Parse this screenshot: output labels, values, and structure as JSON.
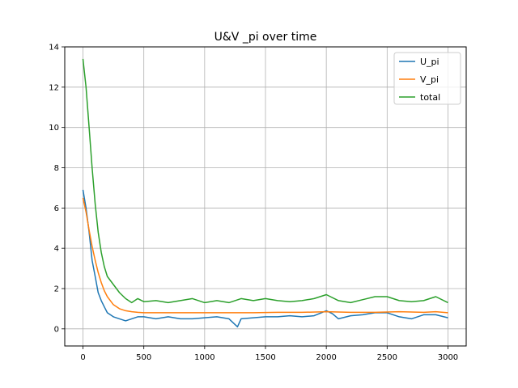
{
  "chart_data": {
    "type": "line",
    "title": "U&V _pi over time",
    "xlabel": "",
    "ylabel": "",
    "xlim": [
      -150,
      3150
    ],
    "ylim": [
      -0.85,
      14.0
    ],
    "xticks": [
      0,
      500,
      1000,
      1500,
      2000,
      2500,
      3000
    ],
    "yticks": [
      0,
      2,
      4,
      6,
      8,
      10,
      12,
      14
    ],
    "grid": true,
    "legend_position": "top-right",
    "series": [
      {
        "name": "U_pi",
        "color": "#1f77b4",
        "x": [
          0,
          25,
          50,
          75,
          100,
          125,
          150,
          175,
          200,
          250,
          300,
          350,
          400,
          450,
          500,
          600,
          700,
          800,
          900,
          1000,
          1100,
          1200,
          1270,
          1300,
          1400,
          1500,
          1600,
          1700,
          1800,
          1900,
          2000,
          2050,
          2100,
          2200,
          2300,
          2400,
          2500,
          2600,
          2700,
          2800,
          2900,
          3000
        ],
        "y": [
          6.9,
          6.0,
          4.8,
          3.4,
          2.6,
          1.8,
          1.4,
          1.1,
          0.8,
          0.6,
          0.5,
          0.4,
          0.5,
          0.6,
          0.6,
          0.5,
          0.6,
          0.5,
          0.5,
          0.55,
          0.6,
          0.5,
          0.1,
          0.5,
          0.55,
          0.6,
          0.6,
          0.65,
          0.6,
          0.65,
          0.9,
          0.75,
          0.5,
          0.65,
          0.7,
          0.8,
          0.8,
          0.6,
          0.5,
          0.7,
          0.7,
          0.55
        ]
      },
      {
        "name": "V_pi",
        "color": "#ff7f0e",
        "x": [
          0,
          25,
          50,
          75,
          100,
          125,
          150,
          175,
          200,
          250,
          300,
          350,
          400,
          450,
          500,
          600,
          700,
          800,
          900,
          1000,
          1200,
          1400,
          1600,
          1800,
          2000,
          2200,
          2400,
          2600,
          2800,
          2900,
          3000
        ],
        "y": [
          6.5,
          5.8,
          4.9,
          4.1,
          3.4,
          2.8,
          2.3,
          1.9,
          1.6,
          1.2,
          1.0,
          0.9,
          0.85,
          0.82,
          0.8,
          0.8,
          0.8,
          0.8,
          0.8,
          0.8,
          0.8,
          0.8,
          0.82,
          0.82,
          0.85,
          0.82,
          0.82,
          0.85,
          0.82,
          0.85,
          0.8
        ]
      },
      {
        "name": "total",
        "color": "#2ca02c",
        "x": [
          0,
          25,
          50,
          75,
          100,
          125,
          150,
          175,
          200,
          250,
          300,
          350,
          400,
          450,
          500,
          600,
          700,
          800,
          900,
          1000,
          1100,
          1200,
          1300,
          1400,
          1500,
          1600,
          1700,
          1800,
          1900,
          2000,
          2100,
          2200,
          2300,
          2400,
          2500,
          2600,
          2700,
          2800,
          2900,
          3000
        ],
        "y": [
          13.4,
          12.0,
          10.0,
          8.0,
          6.2,
          4.8,
          3.8,
          3.1,
          2.6,
          2.2,
          1.8,
          1.5,
          1.3,
          1.5,
          1.35,
          1.4,
          1.3,
          1.4,
          1.5,
          1.3,
          1.4,
          1.3,
          1.5,
          1.4,
          1.5,
          1.4,
          1.35,
          1.4,
          1.5,
          1.7,
          1.4,
          1.3,
          1.45,
          1.6,
          1.6,
          1.4,
          1.35,
          1.4,
          1.6,
          1.3
        ]
      }
    ]
  }
}
